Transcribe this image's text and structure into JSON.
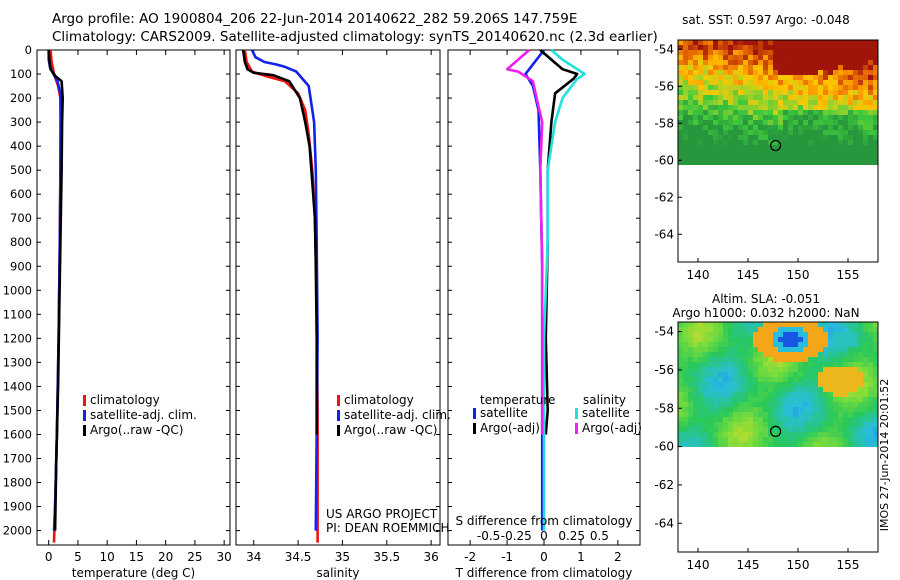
{
  "header": {
    "line1": "Argo profile: AO 1900804_206 22-Jun-2014 20140622_282 59.206S 147.759E",
    "line2": "Climatology: CARS2009. Satellite-adjusted climatology: synTS_20140620.nc (2.3d earlier)"
  },
  "watermark": "IMOS 27-Jun-2014 20:01:52",
  "colors": {
    "climatology": "#ee1111",
    "satellite_adj": "#1122ee",
    "argo": "#000000",
    "salinity_satellite": "#22e0e0",
    "salinity_argo": "#ee22ee"
  },
  "chart_data": [
    {
      "type": "line",
      "panel": "temperature",
      "xlabel": "temperature (deg C)",
      "ylabel": "",
      "xlim": [
        -2,
        31
      ],
      "ylim": [
        2060,
        0
      ],
      "y_inverted": true,
      "x_ticks": [
        0,
        5,
        10,
        15,
        20,
        25,
        30
      ],
      "y_ticks": [
        0,
        100,
        200,
        300,
        400,
        500,
        600,
        700,
        800,
        900,
        1000,
        1100,
        1200,
        1300,
        1400,
        1500,
        1600,
        1700,
        1800,
        1900,
        2000
      ],
      "legend": {
        "placement": "lower-center",
        "entries": [
          "climatology",
          "satellite-adj. clim.",
          "Argo(..raw -QC)"
        ]
      },
      "series": [
        {
          "name": "climatology",
          "color_key": "climatology",
          "points": [
            [
              0.3,
              0
            ],
            [
              0.5,
              50
            ],
            [
              0.9,
              100
            ],
            [
              1.6,
              150
            ],
            [
              2.0,
              200
            ],
            [
              2.0,
              300
            ],
            [
              2.0,
              500
            ],
            [
              1.9,
              800
            ],
            [
              1.7,
              1200
            ],
            [
              1.4,
              1600
            ],
            [
              1.1,
              1900
            ],
            [
              0.9,
              2050
            ]
          ]
        },
        {
          "name": "satellite-adj. clim.",
          "color_key": "satellite_adj",
          "points": [
            [
              0.0,
              0
            ],
            [
              0.0,
              40
            ],
            [
              0.2,
              70
            ],
            [
              0.8,
              100
            ],
            [
              1.5,
              130
            ],
            [
              2.0,
              180
            ],
            [
              2.1,
              300
            ],
            [
              2.0,
              500
            ],
            [
              1.9,
              800
            ],
            [
              1.7,
              1200
            ],
            [
              1.4,
              1600
            ],
            [
              1.1,
              1900
            ],
            [
              0.9,
              2000
            ]
          ]
        },
        {
          "name": "Argo(..raw -QC)",
          "color_key": "argo",
          "points": [
            [
              0.0,
              0
            ],
            [
              0.1,
              40
            ],
            [
              0.3,
              80
            ],
            [
              1.2,
              110
            ],
            [
              2.2,
              130
            ],
            [
              2.4,
              200
            ],
            [
              2.3,
              300
            ],
            [
              2.2,
              500
            ],
            [
              2.0,
              800
            ],
            [
              1.8,
              1100
            ],
            [
              1.6,
              1400
            ],
            [
              1.3,
              1700
            ],
            [
              1.1,
              2000
            ]
          ]
        }
      ]
    },
    {
      "type": "line",
      "panel": "salinity",
      "xlabel": "salinity",
      "ylabel": "",
      "xlim": [
        33.8,
        36.1
      ],
      "ylim": [
        2060,
        0
      ],
      "y_inverted": true,
      "x_ticks": [
        34,
        34.5,
        35,
        35.5,
        36
      ],
      "legend": {
        "placement": "lower-right",
        "entries": [
          "climatology",
          "satellite-adj. clim.",
          "Argo(..raw -QC)"
        ]
      },
      "annotations": [
        "US ARGO PROJECT",
        "PI: DEAN ROEMMICH"
      ],
      "series": [
        {
          "name": "climatology",
          "color_key": "climatology",
          "points": [
            [
              33.9,
              0
            ],
            [
              33.92,
              50
            ],
            [
              33.98,
              90
            ],
            [
              34.15,
              110
            ],
            [
              34.35,
              130
            ],
            [
              34.5,
              180
            ],
            [
              34.58,
              250
            ],
            [
              34.62,
              350
            ],
            [
              34.66,
              500
            ],
            [
              34.69,
              700
            ],
            [
              34.71,
              1000
            ],
            [
              34.72,
              1500
            ],
            [
              34.72,
              2050
            ]
          ]
        },
        {
          "name": "satellite-adj. clim.",
          "color_key": "satellite_adj",
          "points": [
            [
              33.98,
              0
            ],
            [
              34.02,
              30
            ],
            [
              34.12,
              50
            ],
            [
              34.25,
              60
            ],
            [
              34.35,
              70
            ],
            [
              34.48,
              90
            ],
            [
              34.62,
              150
            ],
            [
              34.68,
              300
            ],
            [
              34.7,
              500
            ],
            [
              34.71,
              800
            ],
            [
              34.72,
              1200
            ],
            [
              34.71,
              1600
            ],
            [
              34.7,
              2000
            ]
          ]
        },
        {
          "name": "Argo(..raw -QC)",
          "color_key": "argo",
          "points": [
            [
              33.88,
              0
            ],
            [
              33.9,
              50
            ],
            [
              33.93,
              80
            ],
            [
              34.0,
              95
            ],
            [
              34.22,
              105
            ],
            [
              34.4,
              130
            ],
            [
              34.52,
              200
            ],
            [
              34.58,
              300
            ],
            [
              34.63,
              400
            ],
            [
              34.66,
              550
            ],
            [
              34.69,
              700
            ],
            [
              34.7,
              900
            ],
            [
              34.71,
              1200
            ],
            [
              34.71,
              1500
            ],
            [
              34.71,
              1600
            ]
          ]
        }
      ]
    },
    {
      "type": "line",
      "panel": "difference",
      "xlabel": "T difference from climatology",
      "xlabel_top": "S difference from climatology",
      "ylabel": "",
      "xlim": [
        -2.6,
        2.6
      ],
      "ylim": [
        2060,
        0
      ],
      "y_inverted": true,
      "x_ticks": [
        -2,
        -1,
        0,
        1,
        2
      ],
      "x_ticks_secondary": [
        "-0.5",
        "-0.25",
        "0",
        "0.25",
        "0.5"
      ],
      "legend": {
        "placement": "lower-center",
        "groups": [
          {
            "title": "temperature",
            "entries": [
              "satellite",
              "Argo(-adj)"
            ]
          },
          {
            "title": "salinity",
            "entries": [
              "satellite",
              "Argo(-adj)"
            ]
          }
        ]
      },
      "series": [
        {
          "name": "temperature satellite",
          "color_key": "satellite_adj",
          "points": [
            [
              0.0,
              0
            ],
            [
              -0.3,
              60
            ],
            [
              -0.5,
              100
            ],
            [
              -0.3,
              150
            ],
            [
              -0.15,
              250
            ],
            [
              -0.1,
              500
            ],
            [
              -0.05,
              900
            ],
            [
              -0.05,
              1300
            ],
            [
              -0.05,
              1700
            ],
            [
              -0.05,
              2000
            ]
          ]
        },
        {
          "name": "temperature Argo(-adj)",
          "color_key": "argo",
          "points": [
            [
              -0.1,
              0
            ],
            [
              0.2,
              40
            ],
            [
              0.5,
              80
            ],
            [
              0.9,
              100
            ],
            [
              0.8,
              120
            ],
            [
              0.3,
              180
            ],
            [
              0.2,
              300
            ],
            [
              0.1,
              500
            ],
            [
              0.1,
              800
            ],
            [
              0.05,
              1200
            ],
            [
              0.1,
              1500
            ],
            [
              0.05,
              1600
            ]
          ]
        },
        {
          "name": "salinity satellite",
          "color_key": "salinity_satellite",
          "points": [
            [
              0.2,
              0
            ],
            [
              0.5,
              40
            ],
            [
              0.9,
              80
            ],
            [
              1.1,
              100
            ],
            [
              0.9,
              120
            ],
            [
              0.5,
              200
            ],
            [
              0.3,
              300
            ],
            [
              0.1,
              500
            ],
            [
              0.1,
              800
            ],
            [
              0.0,
              1200
            ],
            [
              0.0,
              1600
            ],
            [
              0.0,
              2000
            ]
          ]
        },
        {
          "name": "salinity Argo(-adj)",
          "color_key": "salinity_argo",
          "points": [
            [
              -0.4,
              0
            ],
            [
              -0.7,
              40
            ],
            [
              -1.0,
              80
            ],
            [
              -0.7,
              90
            ],
            [
              -0.3,
              130
            ],
            [
              -0.2,
              200
            ],
            [
              -0.05,
              300
            ],
            [
              -0.1,
              500
            ],
            [
              -0.05,
              900
            ],
            [
              -0.05,
              1400
            ],
            [
              -0.05,
              1600
            ]
          ]
        }
      ]
    },
    {
      "type": "heatmap",
      "panel": "sst-map",
      "title": "sat. SST: 0.597 Argo: -0.048",
      "xlim": [
        138,
        158
      ],
      "ylim": [
        -65.5,
        -53.5
      ],
      "x_ticks": [
        140,
        145,
        150,
        155
      ],
      "y_ticks": [
        -54,
        -56,
        -58,
        -60,
        -62,
        -64
      ],
      "data_extent_lat": [
        -60,
        -53.5
      ],
      "float_position": [
        147.759,
        -59.206
      ]
    },
    {
      "type": "heatmap",
      "panel": "sla-map",
      "title": "Altim. SLA: -0.051",
      "subtitle": "Argo h1000: 0.032 h2000: NaN",
      "xlim": [
        138,
        158
      ],
      "ylim": [
        -65.5,
        -53.5
      ],
      "x_ticks": [
        140,
        145,
        150,
        155
      ],
      "y_ticks": [
        -54,
        -56,
        -58,
        -60,
        -62,
        -64
      ],
      "data_extent_lat": [
        -60,
        -53.5
      ],
      "float_position": [
        147.759,
        -59.206
      ]
    }
  ]
}
